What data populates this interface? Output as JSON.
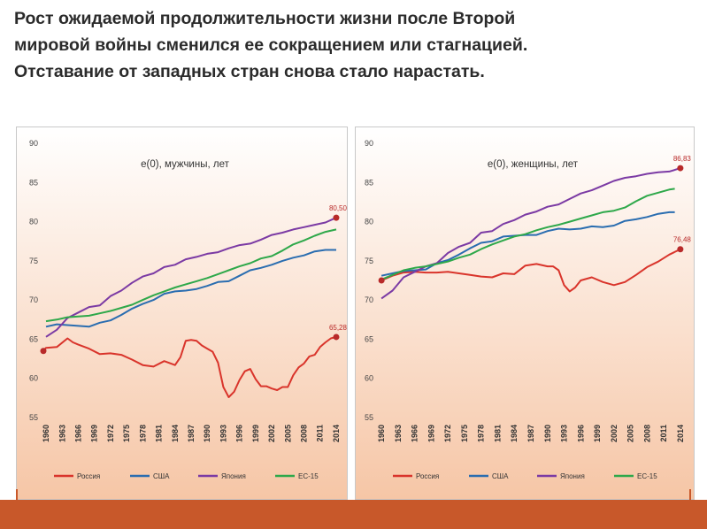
{
  "heading": {
    "lines": [
      "Рост ожидаемой продолжительности жизни после Второй",
      "мировой войны сменился ее сокращением или стагнацией.",
      "Отставание от западных стран снова стало нарастать."
    ]
  },
  "colors": {
    "russia": "#d9342b",
    "usa": "#2a6db0",
    "japan": "#7b3aa4",
    "eu15": "#2ea84a",
    "accent_bar": "#c8582a",
    "gradient_top": "#ffffff",
    "gradient_bottom": "#f6c6a6"
  },
  "chart_data": [
    {
      "type": "line",
      "title": "e(0), мужчины, лет",
      "xlabel": "",
      "ylabel": "",
      "ylim": [
        55,
        90
      ],
      "yticks": [
        55,
        60,
        65,
        70,
        75,
        80,
        85,
        90
      ],
      "xticks": [
        1960,
        1963,
        1966,
        1969,
        1972,
        1975,
        1978,
        1981,
        1984,
        1987,
        1990,
        1993,
        1996,
        1999,
        2002,
        2005,
        2008,
        2011,
        2014
      ],
      "xlim": [
        1959.5,
        2014.5
      ],
      "grid": false,
      "legend": "bottom",
      "annotations": [
        {
          "text": "80,50",
          "series": "Япония",
          "x": 2014,
          "y": 80.5
        },
        {
          "text": "65,28",
          "series": "Россия",
          "x": 2014,
          "y": 65.28
        }
      ],
      "series": [
        {
          "name": "Россия",
          "color_key": "russia",
          "x": [
            1959,
            1960,
            1962,
            1964,
            1965,
            1966,
            1968,
            1970,
            1972,
            1974,
            1976,
            1978,
            1980,
            1982,
            1984,
            1985,
            1986,
            1987,
            1988,
            1989,
            1990,
            1991,
            1992,
            1993,
            1994,
            1995,
            1996,
            1997,
            1998,
            1999,
            2000,
            2001,
            2002,
            2003,
            2004,
            2005,
            2006,
            2007,
            2008,
            2009,
            2010,
            2011,
            2012,
            2013,
            2014
          ],
          "y": [
            63.5,
            63.9,
            64.0,
            65.1,
            64.6,
            64.3,
            63.8,
            63.1,
            63.2,
            63.0,
            62.4,
            61.7,
            61.5,
            62.2,
            61.7,
            62.7,
            64.8,
            64.9,
            64.8,
            64.2,
            63.8,
            63.4,
            62.0,
            58.9,
            57.6,
            58.3,
            59.8,
            60.9,
            61.2,
            59.9,
            59.0,
            59.0,
            58.7,
            58.5,
            58.9,
            58.9,
            60.4,
            61.4,
            61.9,
            62.8,
            63.0,
            64.0,
            64.6,
            65.1,
            65.28
          ]
        },
        {
          "name": "США",
          "color_key": "usa",
          "x": [
            1960,
            1962,
            1964,
            1966,
            1968,
            1970,
            1972,
            1974,
            1976,
            1978,
            1980,
            1982,
            1984,
            1986,
            1988,
            1990,
            1992,
            1994,
            1996,
            1998,
            2000,
            2002,
            2004,
            2006,
            2008,
            2010,
            2012,
            2014
          ],
          "y": [
            66.6,
            66.9,
            66.8,
            66.7,
            66.6,
            67.1,
            67.4,
            68.1,
            68.9,
            69.5,
            70.0,
            70.8,
            71.1,
            71.2,
            71.4,
            71.8,
            72.3,
            72.4,
            73.1,
            73.8,
            74.1,
            74.5,
            75.0,
            75.4,
            75.7,
            76.2,
            76.4,
            76.4
          ]
        },
        {
          "name": "Япония",
          "color_key": "japan",
          "x": [
            1960,
            1962,
            1964,
            1966,
            1968,
            1970,
            1972,
            1974,
            1976,
            1978,
            1980,
            1982,
            1984,
            1986,
            1988,
            1990,
            1992,
            1994,
            1996,
            1998,
            2000,
            2002,
            2004,
            2006,
            2008,
            2010,
            2012,
            2014
          ],
          "y": [
            65.3,
            66.2,
            67.7,
            68.4,
            69.1,
            69.3,
            70.5,
            71.2,
            72.2,
            73.0,
            73.4,
            74.2,
            74.5,
            75.2,
            75.5,
            75.9,
            76.1,
            76.6,
            77.0,
            77.2,
            77.7,
            78.3,
            78.6,
            79.0,
            79.3,
            79.6,
            79.9,
            80.5
          ]
        },
        {
          "name": "ЕС-15",
          "color_key": "eu15",
          "x": [
            1960,
            1962,
            1964,
            1966,
            1968,
            1970,
            1972,
            1974,
            1976,
            1978,
            1980,
            1982,
            1984,
            1986,
            1988,
            1990,
            1992,
            1994,
            1996,
            1998,
            2000,
            2002,
            2004,
            2006,
            2008,
            2010,
            2012,
            2014
          ],
          "y": [
            67.3,
            67.5,
            67.8,
            67.9,
            68.0,
            68.3,
            68.6,
            69.0,
            69.4,
            70.0,
            70.6,
            71.1,
            71.6,
            72.0,
            72.4,
            72.8,
            73.3,
            73.8,
            74.3,
            74.7,
            75.3,
            75.6,
            76.3,
            77.1,
            77.6,
            78.2,
            78.7,
            79.0
          ]
        }
      ]
    },
    {
      "type": "line",
      "title": "e(0), женщины, лет",
      "xlabel": "",
      "ylabel": "",
      "ylim": [
        55,
        90
      ],
      "yticks": [
        55,
        60,
        65,
        70,
        75,
        80,
        85,
        90
      ],
      "xticks": [
        1960,
        1963,
        1966,
        1969,
        1972,
        1975,
        1978,
        1981,
        1984,
        1987,
        1990,
        1993,
        1996,
        1999,
        2002,
        2005,
        2008,
        2011,
        2014
      ],
      "xlim": [
        1959.5,
        2014.5
      ],
      "grid": false,
      "legend": "bottom",
      "annotations": [
        {
          "text": "86,83",
          "series": "Япония",
          "x": 2014,
          "y": 86.83
        },
        {
          "text": "76,48",
          "series": "Россия",
          "x": 2014,
          "y": 76.48
        }
      ],
      "series": [
        {
          "name": "Россия",
          "color_key": "russia",
          "x": [
            1960,
            1962,
            1964,
            1966,
            1968,
            1970,
            1972,
            1974,
            1976,
            1978,
            1980,
            1982,
            1984,
            1986,
            1988,
            1990,
            1991,
            1992,
            1993,
            1994,
            1995,
            1996,
            1998,
            2000,
            2002,
            2004,
            2006,
            2008,
            2010,
            2012,
            2014
          ],
          "y": [
            72.5,
            73.1,
            73.5,
            73.6,
            73.5,
            73.5,
            73.6,
            73.4,
            73.2,
            73.0,
            72.9,
            73.4,
            73.3,
            74.4,
            74.6,
            74.3,
            74.3,
            73.8,
            71.9,
            71.1,
            71.6,
            72.5,
            72.9,
            72.3,
            71.9,
            72.3,
            73.2,
            74.2,
            74.9,
            75.8,
            76.48
          ]
        },
        {
          "name": "США",
          "color_key": "usa",
          "x": [
            1960,
            1962,
            1964,
            1966,
            1968,
            1970,
            1972,
            1974,
            1976,
            1978,
            1980,
            1982,
            1984,
            1986,
            1988,
            1990,
            1992,
            1994,
            1996,
            1998,
            2000,
            2002,
            2004,
            2006,
            2008,
            2010,
            2012,
            2013
          ],
          "y": [
            73.1,
            73.4,
            73.7,
            73.8,
            73.9,
            74.7,
            75.1,
            75.8,
            76.6,
            77.3,
            77.5,
            78.1,
            78.2,
            78.3,
            78.3,
            78.8,
            79.1,
            79.0,
            79.1,
            79.4,
            79.3,
            79.5,
            80.1,
            80.3,
            80.6,
            81.0,
            81.2,
            81.2
          ]
        },
        {
          "name": "Япония",
          "color_key": "japan",
          "x": [
            1960,
            1962,
            1964,
            1966,
            1968,
            1970,
            1972,
            1974,
            1976,
            1978,
            1980,
            1982,
            1984,
            1986,
            1988,
            1990,
            1992,
            1994,
            1996,
            1998,
            2000,
            2002,
            2004,
            2006,
            2008,
            2010,
            2012,
            2014
          ],
          "y": [
            70.2,
            71.2,
            72.9,
            73.6,
            74.3,
            74.7,
            76.0,
            76.8,
            77.3,
            78.6,
            78.8,
            79.7,
            80.2,
            80.9,
            81.3,
            81.9,
            82.2,
            82.9,
            83.6,
            84.0,
            84.6,
            85.2,
            85.6,
            85.8,
            86.1,
            86.3,
            86.4,
            86.83
          ]
        },
        {
          "name": "ЕС-15",
          "color_key": "eu15",
          "x": [
            1960,
            1962,
            1964,
            1966,
            1968,
            1970,
            1972,
            1974,
            1976,
            1978,
            1980,
            1982,
            1984,
            1986,
            1988,
            1990,
            1992,
            1994,
            1996,
            1998,
            2000,
            2002,
            2004,
            2006,
            2008,
            2010,
            2012,
            2013
          ],
          "y": [
            72.6,
            73.2,
            73.8,
            74.1,
            74.3,
            74.6,
            74.9,
            75.4,
            75.8,
            76.5,
            77.1,
            77.6,
            78.1,
            78.4,
            78.9,
            79.3,
            79.6,
            80.0,
            80.4,
            80.8,
            81.2,
            81.4,
            81.8,
            82.6,
            83.3,
            83.7,
            84.1,
            84.2
          ]
        }
      ]
    }
  ]
}
